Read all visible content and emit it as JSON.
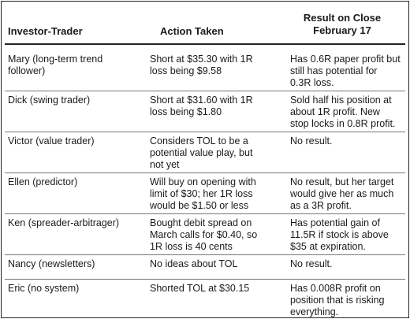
{
  "headers": {
    "trader": "Investor-Trader",
    "action": "Action Taken",
    "result_line1": "Result on Close",
    "result_line2": "February 17"
  },
  "rows": [
    {
      "trader": [
        "Mary (long-term trend",
        "follower)"
      ],
      "action": [
        "Short at $35.30 with 1R",
        "loss being $9.58"
      ],
      "result": [
        "Has 0.6R paper profit but",
        "still has potential for",
        "0.3R loss."
      ]
    },
    {
      "trader": [
        "Dick (swing trader)"
      ],
      "action": [
        "Short at $31.60 with 1R",
        "loss being $1.80"
      ],
      "result": [
        "Sold half his position at",
        "about 1R profit. New",
        "stop locks in 0.8R profit."
      ]
    },
    {
      "trader": [
        "Victor (value trader)"
      ],
      "action": [
        "Considers TOL to be a",
        "potential value play, but",
        "not yet"
      ],
      "result": [
        "No result."
      ]
    },
    {
      "trader": [
        "Ellen (predictor)"
      ],
      "action": [
        "Will buy on opening with",
        "limit of $30; her 1R loss",
        "would be $1.50 or less"
      ],
      "result": [
        "No result, but her target",
        "would give her as much",
        "as a 3R profit."
      ]
    },
    {
      "trader": [
        "Ken (spreader-arbitrager)"
      ],
      "action": [
        "Bought debit spread on",
        "March calls for $0.40, so",
        "1R loss is 40 cents"
      ],
      "result": [
        "Has potential gain of",
        "11.5R if stock is above",
        "$35 at expiration."
      ]
    },
    {
      "trader": [
        "Nancy (newsletters)"
      ],
      "action": [
        "No ideas about TOL"
      ],
      "result": [
        "No result."
      ]
    },
    {
      "trader": [
        "Eric (no system)"
      ],
      "action": [
        "Shorted TOL at $30.15"
      ],
      "result": [
        "Has 0.008R profit on",
        "position that is risking",
        "everything."
      ]
    }
  ]
}
